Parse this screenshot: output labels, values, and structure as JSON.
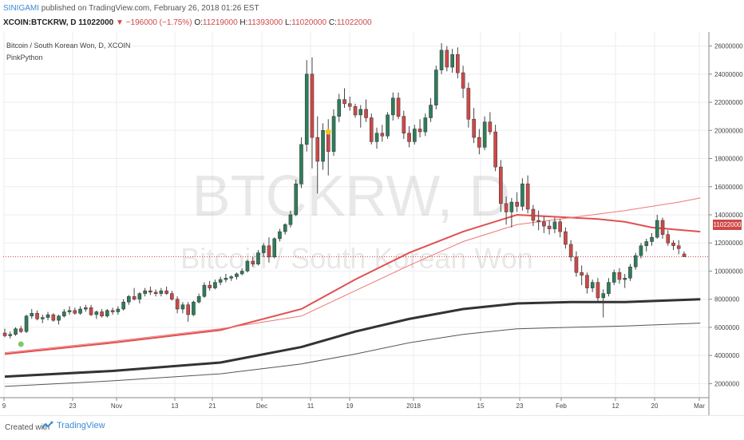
{
  "header": {
    "user": "SINIGAMI",
    "published": " published on TradingView.com, February 26, 2018 01:26 EST",
    "symbol": "XCOIN:BTCKRW, D",
    "last": "11022000",
    "change": "−196000 (−1.75%)",
    "o_label": "O:",
    "o_value": "11219000",
    "h_label": "H:",
    "h_value": "11393000",
    "l_label": "L:",
    "l_value": "11020000",
    "c_label": "C:",
    "c_value": "11022000"
  },
  "legend": {
    "title": "Bitcoin / South Korean Won, D, XCOIN",
    "indicator": "PinkPython"
  },
  "watermark": {
    "symbol": "BTCKRW, D",
    "name": "Bitcoin / South Korean Won"
  },
  "price_tag": "11022000",
  "footer": {
    "created": "Created with",
    "brand": "TradingView"
  },
  "colors": {
    "up": "#2e7d5b",
    "down": "#d04848",
    "ma_red": "#e05050",
    "ma_black": "#333333",
    "grid": "#eeeeee"
  },
  "chart_data": {
    "type": "candlestick",
    "ylim": [
      1000000,
      27000000
    ],
    "y_ticks": [
      "26000000",
      "24000000",
      "22000000",
      "20000000",
      "18000000",
      "16000000",
      "14000000",
      "12000000",
      "10000000",
      "8000000",
      "6000000",
      "4000000",
      "2000000"
    ],
    "x_ticks": [
      "9",
      "23",
      "Nov",
      "13",
      "21",
      "Dec",
      "11",
      "19",
      "2018",
      "15",
      "23",
      "Feb",
      "12",
      "20",
      "Mar"
    ],
    "last_price": 11022000,
    "candles": [
      [
        5600000,
        5900000,
        5300000,
        5400000
      ],
      [
        5400000,
        5700000,
        5200000,
        5500000
      ],
      [
        5500000,
        6000000,
        5400000,
        5900000
      ],
      [
        5900000,
        6100000,
        5600000,
        5700000
      ],
      [
        5700000,
        6900000,
        5600000,
        6800000
      ],
      [
        6800000,
        7300000,
        6600000,
        7000000
      ],
      [
        7000000,
        7200000,
        6500000,
        6600000
      ],
      [
        6600000,
        6900000,
        6300000,
        6700000
      ],
      [
        6700000,
        7100000,
        6500000,
        6900000
      ],
      [
        6900000,
        7000000,
        6400000,
        6500000
      ],
      [
        6500000,
        6900000,
        6200000,
        6800000
      ],
      [
        6800000,
        7300000,
        6700000,
        7100000
      ],
      [
        7100000,
        7500000,
        6900000,
        7200000
      ],
      [
        7200000,
        7400000,
        6900000,
        7000000
      ],
      [
        7000000,
        7500000,
        6900000,
        7300000
      ],
      [
        7300000,
        7600000,
        7100000,
        7400000
      ],
      [
        7400000,
        7600000,
        6800000,
        6900000
      ],
      [
        6900000,
        7200000,
        6600000,
        7100000
      ],
      [
        7100000,
        7300000,
        6700000,
        6800000
      ],
      [
        6800000,
        7300000,
        6700000,
        7200000
      ],
      [
        7200000,
        7400000,
        6900000,
        7100000
      ],
      [
        7100000,
        7500000,
        6900000,
        7300000
      ],
      [
        7300000,
        8000000,
        7200000,
        7800000
      ],
      [
        7800000,
        8300000,
        7600000,
        8200000
      ],
      [
        8200000,
        8800000,
        7900000,
        8000000
      ],
      [
        8000000,
        8500000,
        7700000,
        8400000
      ],
      [
        8400000,
        8800000,
        8200000,
        8600000
      ],
      [
        8600000,
        8900000,
        8300000,
        8500000
      ],
      [
        8500000,
        8700000,
        8200000,
        8400000
      ],
      [
        8400000,
        8800000,
        8200000,
        8600000
      ],
      [
        8600000,
        8900000,
        8300000,
        8400000
      ],
      [
        8400000,
        8600000,
        7900000,
        8000000
      ],
      [
        8000000,
        8200000,
        7000000,
        7300000
      ],
      [
        7300000,
        7800000,
        7000000,
        7600000
      ],
      [
        7600000,
        7800000,
        6400000,
        6900000
      ],
      [
        6900000,
        7900000,
        6800000,
        7800000
      ],
      [
        7800000,
        8400000,
        7700000,
        8200000
      ],
      [
        8200000,
        9200000,
        8100000,
        9000000
      ],
      [
        9000000,
        9300000,
        8600000,
        8800000
      ],
      [
        8800000,
        9400000,
        8700000,
        9200000
      ],
      [
        9200000,
        9600000,
        9000000,
        9400000
      ],
      [
        9400000,
        9800000,
        9200000,
        9500000
      ],
      [
        9500000,
        9700000,
        9300000,
        9600000
      ],
      [
        9600000,
        9900000,
        9400000,
        9800000
      ],
      [
        9800000,
        10200000,
        9700000,
        10000000
      ],
      [
        10000000,
        10800000,
        9900000,
        10700000
      ],
      [
        10700000,
        11000000,
        10300000,
        10500000
      ],
      [
        10500000,
        11500000,
        10400000,
        11300000
      ],
      [
        11300000,
        12000000,
        11000000,
        11800000
      ],
      [
        11800000,
        12400000,
        10600000,
        11000000
      ],
      [
        11000000,
        12400000,
        10900000,
        12300000
      ],
      [
        12300000,
        13000000,
        12100000,
        12800000
      ],
      [
        12800000,
        13400000,
        12600000,
        13300000
      ],
      [
        13300000,
        14300000,
        13100000,
        14000000
      ],
      [
        14000000,
        16500000,
        13900000,
        16200000
      ],
      [
        16200000,
        19500000,
        15900000,
        19000000
      ],
      [
        19000000,
        25000000,
        18500000,
        24000000
      ],
      [
        24000000,
        25200000,
        17300000,
        19500000
      ],
      [
        19500000,
        21000000,
        15500000,
        17800000
      ],
      [
        17800000,
        20500000,
        17200000,
        20000000
      ],
      [
        20000000,
        20800000,
        16800000,
        18500000
      ],
      [
        18500000,
        21500000,
        18200000,
        21000000
      ],
      [
        21000000,
        22600000,
        20600000,
        22200000
      ],
      [
        22200000,
        23000000,
        21600000,
        21900000
      ],
      [
        21900000,
        22400000,
        21400000,
        21700000
      ],
      [
        21700000,
        21900000,
        20900000,
        21100000
      ],
      [
        21100000,
        21800000,
        20200000,
        21500000
      ],
      [
        21500000,
        22200000,
        20600000,
        20900000
      ],
      [
        20900000,
        21200000,
        19000000,
        19200000
      ],
      [
        19200000,
        20200000,
        18700000,
        19800000
      ],
      [
        19800000,
        20400000,
        19200000,
        19600000
      ],
      [
        19600000,
        21300000,
        19400000,
        21100000
      ],
      [
        21100000,
        22700000,
        20700000,
        22300000
      ],
      [
        22300000,
        22700000,
        20800000,
        21000000
      ],
      [
        21000000,
        21400000,
        19400000,
        19800000
      ],
      [
        19800000,
        20300000,
        18800000,
        19200000
      ],
      [
        19200000,
        20400000,
        19000000,
        20100000
      ],
      [
        20100000,
        20800000,
        19500000,
        19900000
      ],
      [
        19900000,
        21200000,
        19600000,
        20900000
      ],
      [
        20900000,
        22300000,
        20600000,
        21800000
      ],
      [
        21800000,
        24600000,
        21500000,
        24300000
      ],
      [
        24300000,
        26200000,
        24000000,
        25700000
      ],
      [
        25700000,
        26000000,
        24200000,
        24500000
      ],
      [
        24500000,
        25800000,
        24100000,
        25400000
      ],
      [
        25400000,
        25900000,
        23700000,
        24100000
      ],
      [
        24100000,
        24600000,
        22300000,
        23000000
      ],
      [
        23000000,
        23400000,
        20200000,
        20800000
      ],
      [
        20800000,
        21600000,
        19100000,
        19500000
      ],
      [
        19500000,
        20100000,
        18300000,
        18800000
      ],
      [
        18800000,
        21000000,
        18600000,
        20600000
      ],
      [
        20600000,
        21300000,
        19700000,
        19900000
      ],
      [
        19900000,
        20400000,
        17100000,
        17400000
      ],
      [
        17400000,
        17900000,
        14200000,
        14800000
      ],
      [
        14800000,
        15300000,
        13300000,
        14200000
      ],
      [
        14200000,
        15200000,
        13100000,
        14900000
      ],
      [
        14900000,
        15600000,
        14200000,
        14600000
      ],
      [
        14600000,
        16600000,
        14300000,
        16200000
      ],
      [
        16200000,
        16800000,
        14100000,
        14400000
      ],
      [
        14400000,
        14700000,
        13200000,
        13600000
      ],
      [
        13600000,
        14300000,
        12900000,
        13500000
      ],
      [
        13500000,
        13900000,
        12700000,
        13200000
      ],
      [
        13200000,
        13600000,
        12600000,
        13000000
      ],
      [
        13000000,
        13800000,
        12700000,
        13500000
      ],
      [
        13500000,
        13700000,
        12400000,
        12800000
      ],
      [
        12800000,
        13100000,
        11600000,
        11900000
      ],
      [
        11900000,
        12200000,
        10700000,
        11000000
      ],
      [
        11000000,
        11400000,
        9600000,
        9900000
      ],
      [
        9900000,
        10400000,
        9000000,
        9700000
      ],
      [
        9700000,
        9900000,
        8400000,
        8800000
      ],
      [
        8800000,
        9400000,
        8500000,
        9200000
      ],
      [
        9200000,
        9500000,
        7800000,
        8100000
      ],
      [
        8100000,
        8700000,
        6700000,
        8400000
      ],
      [
        8400000,
        9500000,
        8200000,
        9200000
      ],
      [
        9200000,
        10100000,
        9000000,
        9900000
      ],
      [
        9900000,
        10200000,
        9100000,
        9400000
      ],
      [
        9400000,
        9800000,
        8800000,
        9500000
      ],
      [
        9500000,
        10500000,
        9300000,
        10300000
      ],
      [
        10300000,
        11300000,
        10100000,
        11100000
      ],
      [
        11100000,
        12000000,
        10900000,
        11800000
      ],
      [
        11800000,
        12300000,
        11400000,
        12100000
      ],
      [
        12100000,
        12700000,
        11800000,
        12400000
      ],
      [
        12400000,
        14000000,
        12300000,
        13600000
      ],
      [
        13600000,
        13800000,
        12300000,
        12600000
      ],
      [
        12600000,
        12900000,
        11800000,
        12000000
      ],
      [
        12000000,
        12200000,
        11500000,
        11800000
      ],
      [
        11800000,
        12200000,
        11200000,
        11600000
      ],
      [
        11219000,
        11393000,
        11020000,
        11022000
      ]
    ],
    "overlays": [
      {
        "name": "ma_red_thick",
        "color": "#e05050",
        "points": [
          [
            0,
            4100000
          ],
          [
            20,
            4900000
          ],
          [
            40,
            5800000
          ],
          [
            55,
            7300000
          ],
          [
            65,
            9400000
          ],
          [
            75,
            11300000
          ],
          [
            85,
            12800000
          ],
          [
            95,
            14000000
          ],
          [
            100,
            13900000
          ],
          [
            110,
            13700000
          ],
          [
            115,
            13500000
          ],
          [
            120,
            13100000
          ],
          [
            129,
            12800000
          ]
        ]
      },
      {
        "name": "ma_red_thin",
        "color": "#ee7777",
        "points": [
          [
            0,
            4200000
          ],
          [
            20,
            5000000
          ],
          [
            40,
            5900000
          ],
          [
            55,
            6800000
          ],
          [
            65,
            8600000
          ],
          [
            75,
            10400000
          ],
          [
            85,
            12100000
          ],
          [
            95,
            13300000
          ],
          [
            105,
            13800000
          ],
          [
            115,
            14300000
          ],
          [
            125,
            14900000
          ],
          [
            129,
            15200000
          ]
        ]
      },
      {
        "name": "ma_black_thick",
        "color": "#333333",
        "points": [
          [
            0,
            2500000
          ],
          [
            20,
            2900000
          ],
          [
            40,
            3500000
          ],
          [
            55,
            4600000
          ],
          [
            65,
            5700000
          ],
          [
            75,
            6600000
          ],
          [
            85,
            7300000
          ],
          [
            95,
            7700000
          ],
          [
            105,
            7800000
          ],
          [
            115,
            7800000
          ],
          [
            129,
            8000000
          ]
        ]
      },
      {
        "name": "ma_black_thin",
        "color": "#555555",
        "points": [
          [
            0,
            1800000
          ],
          [
            20,
            2200000
          ],
          [
            40,
            2700000
          ],
          [
            55,
            3400000
          ],
          [
            65,
            4100000
          ],
          [
            75,
            4900000
          ],
          [
            85,
            5500000
          ],
          [
            95,
            5900000
          ],
          [
            105,
            6000000
          ],
          [
            115,
            6100000
          ],
          [
            129,
            6300000
          ]
        ]
      }
    ],
    "markers": [
      {
        "index": 3,
        "value": 4800000,
        "color": "#7bc96f"
      },
      {
        "index": 60,
        "value": 19900000,
        "color": "#f0c419"
      }
    ]
  }
}
